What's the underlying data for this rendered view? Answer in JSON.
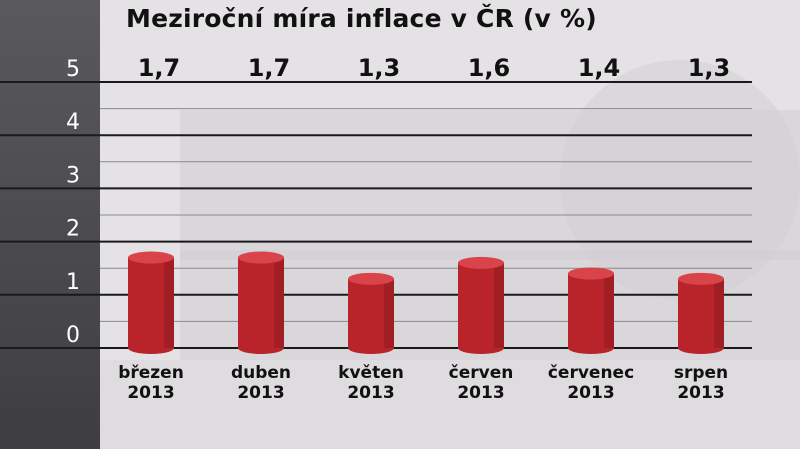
{
  "title": "Meziroční míra inflace v ČR (v %)",
  "chart_data": {
    "type": "bar",
    "title": "Meziroční míra inflace v ČR (v %)",
    "categories": [
      [
        "březen",
        "2013"
      ],
      [
        "duben",
        "2013"
      ],
      [
        "květen",
        "2013"
      ],
      [
        "červen",
        "2013"
      ],
      [
        "červenec",
        "2013"
      ],
      [
        "srpen",
        "2013"
      ]
    ],
    "values": [
      1.7,
      1.7,
      1.3,
      1.6,
      1.4,
      1.3
    ],
    "value_labels": [
      "1,7",
      "1,7",
      "1,3",
      "1,6",
      "1,4",
      "1,3"
    ],
    "yticks": [
      "0",
      "1",
      "2",
      "3",
      "4",
      "5"
    ],
    "ylim": [
      0,
      5
    ],
    "grid": true,
    "bar_color": "#b8242a",
    "bar_top_color": "#d9444a"
  }
}
